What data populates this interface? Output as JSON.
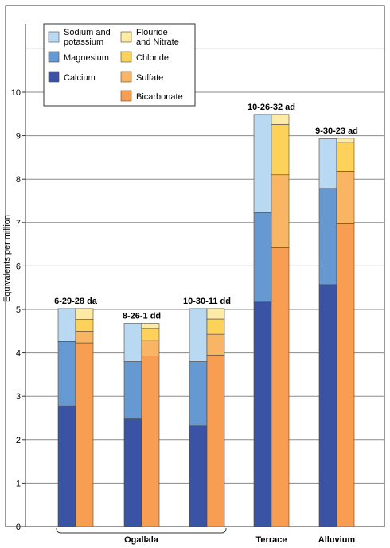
{
  "chart_data": {
    "type": "bar",
    "subtype": "paired-stacked",
    "ylabel": "Equivalents per million",
    "ylim": [
      0,
      12
    ],
    "yticks": [
      "0",
      "1",
      "2",
      "3",
      "4",
      "5",
      "6",
      "7",
      "8",
      "9",
      "10"
    ],
    "grid": true,
    "legend_position": "top-left",
    "legend": [
      {
        "key": "sodium_potassium",
        "label": "Sodium and potassium",
        "lines": [
          "Sodium and",
          "potassium"
        ],
        "color": "#b9d9f2"
      },
      {
        "key": "magnesium",
        "label": "Magnesium",
        "lines": [
          "Magnesium"
        ],
        "color": "#6699d1"
      },
      {
        "key": "calcium",
        "label": "Calcium",
        "lines": [
          "Calcium"
        ],
        "color": "#3a53a4"
      },
      {
        "key": "flouride_nitrate",
        "label": "Flouride and Nitrate",
        "lines": [
          "Flouride",
          "and Nitrate"
        ],
        "color": "#fdeaa4"
      },
      {
        "key": "chloride",
        "label": "Chloride",
        "lines": [
          "Chloride"
        ],
        "color": "#fcd25a"
      },
      {
        "key": "sulfate",
        "label": "Sulfate",
        "lines": [
          "Sulfate"
        ],
        "color": "#f8b665"
      },
      {
        "key": "bicarbonate",
        "label": "Bicarbonate",
        "lines": [
          "Bicarbonate"
        ],
        "color": "#f79e52"
      }
    ],
    "wells": [
      {
        "label": "6-29-28 da",
        "group": "Ogallala",
        "cations": {
          "calcium": 2.78,
          "magnesium": 1.48,
          "sodium_potassium": 0.76
        },
        "anions": {
          "bicarbonate": 4.23,
          "sulfate": 0.27,
          "chloride": 0.27,
          "flouride_nitrate": 0.25
        }
      },
      {
        "label": "8-26-1 dd",
        "group": "Ogallala",
        "cations": {
          "calcium": 2.48,
          "magnesium": 1.32,
          "sodium_potassium": 0.88
        },
        "anions": {
          "bicarbonate": 3.93,
          "sulfate": 0.36,
          "chloride": 0.27,
          "flouride_nitrate": 0.12
        }
      },
      {
        "label": "10-30-11 dd",
        "group": "Ogallala",
        "cations": {
          "calcium": 2.33,
          "magnesium": 1.47,
          "sodium_potassium": 1.22
        },
        "anions": {
          "bicarbonate": 3.95,
          "sulfate": 0.48,
          "chloride": 0.35,
          "flouride_nitrate": 0.24
        }
      },
      {
        "label": "10-26-32 ad",
        "group": "Terrace",
        "cations": {
          "calcium": 5.17,
          "magnesium": 2.06,
          "sodium_potassium": 2.26
        },
        "anions": {
          "bicarbonate": 6.42,
          "sulfate": 1.68,
          "chloride": 1.16,
          "flouride_nitrate": 0.23
        }
      },
      {
        "label": "9-30-23 ad",
        "group": "Alluvium",
        "cations": {
          "calcium": 5.57,
          "magnesium": 2.22,
          "sodium_potassium": 1.14
        },
        "anions": {
          "bicarbonate": 6.97,
          "sulfate": 1.21,
          "chloride": 0.67,
          "flouride_nitrate": 0.09
        }
      }
    ],
    "groups": [
      {
        "label": "Ogallala",
        "wells": [
          0,
          1,
          2
        ],
        "bracket": true
      },
      {
        "label": "Terrace",
        "wells": [
          3
        ],
        "bracket": false
      },
      {
        "label": "Alluvium",
        "wells": [
          4
        ],
        "bracket": false
      }
    ]
  }
}
